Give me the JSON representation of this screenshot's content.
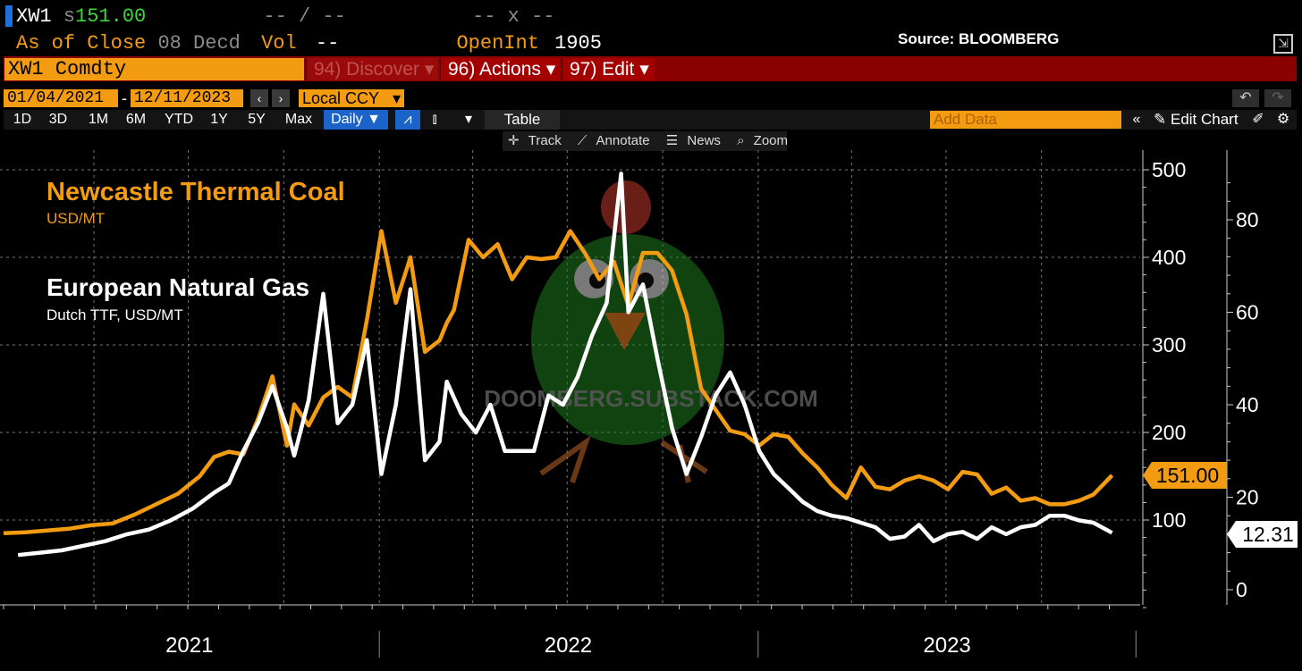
{
  "header": {
    "ticker_short": "XW1",
    "price_prefix": "s",
    "price": "151.00",
    "change_placeholder": "-- / --",
    "range_placeholder": "-- x --",
    "as_of_label": "As of Close",
    "as_of_date": "08 Decd",
    "vol_label": "Vol",
    "vol_value": "--",
    "openint_label": "OpenInt",
    "openint_value": "1905",
    "source": "Source: BLOOMBERG"
  },
  "menubar": {
    "ticker": "XW1 Comdty",
    "discover": "94) Discover ▾",
    "actions": "96) Actions ▾",
    "edit": "97) Edit ▾"
  },
  "controls": {
    "start_date": "01/04/2021",
    "end_date": "12/11/2023",
    "currency": "Local CCY",
    "ranges": [
      "1D",
      "3D",
      "1M",
      "6M",
      "YTD",
      "1Y",
      "5Y",
      "Max"
    ],
    "frequency": "Daily ▼",
    "table_label": "Table",
    "add_data_placeholder": "Add Data",
    "edit_chart": "Edit Chart",
    "tools": [
      "Track",
      "Annotate",
      "News",
      "Zoom"
    ]
  },
  "watermark": "DOOMBERG.SUBSTACK.COM",
  "colors": {
    "coal": "#f39c12",
    "gas": "#ffffff",
    "menu_bar": "#8b0000",
    "daily_button": "#1b63c8"
  },
  "chart_data": {
    "type": "line",
    "x_ticks": [
      "2021",
      "2022",
      "2023"
    ],
    "grid": true,
    "legend": "top-left",
    "series": [
      {
        "name": "Newcastle Thermal Coal",
        "unit": "USD/MT",
        "axis": "left",
        "last_value": "151.00",
        "color": "#f39c12",
        "x": [
          "2021-01-04",
          "2021-01-25",
          "2021-02-15",
          "2021-03-08",
          "2021-03-29",
          "2021-04-19",
          "2021-05-10",
          "2021-05-31",
          "2021-06-21",
          "2021-07-12",
          "2021-07-26",
          "2021-08-09",
          "2021-08-23",
          "2021-09-06",
          "2021-09-20",
          "2021-09-27",
          "2021-10-04",
          "2021-10-11",
          "2021-10-18",
          "2021-10-25",
          "2021-11-08",
          "2021-11-22",
          "2021-12-06",
          "2021-12-20",
          "2022-01-03",
          "2022-01-17",
          "2022-01-31",
          "2022-02-14",
          "2022-02-28",
          "2022-03-07",
          "2022-03-14",
          "2022-03-28",
          "2022-04-11",
          "2022-04-25",
          "2022-05-09",
          "2022-05-23",
          "2022-06-06",
          "2022-06-20",
          "2022-07-04",
          "2022-07-18",
          "2022-08-01",
          "2022-08-15",
          "2022-08-29",
          "2022-09-12",
          "2022-09-26",
          "2022-10-10",
          "2022-10-24",
          "2022-11-07",
          "2022-11-21",
          "2022-12-05",
          "2022-12-19",
          "2023-01-02",
          "2023-01-16",
          "2023-01-30",
          "2023-02-13",
          "2023-02-27",
          "2023-03-13",
          "2023-03-27",
          "2023-04-10",
          "2023-04-24",
          "2023-05-08",
          "2023-05-22",
          "2023-06-05",
          "2023-06-19",
          "2023-07-03",
          "2023-07-17",
          "2023-07-31",
          "2023-08-14",
          "2023-08-28",
          "2023-09-11",
          "2023-09-25",
          "2023-10-09",
          "2023-10-23",
          "2023-11-06",
          "2023-11-20",
          "2023-12-08"
        ],
        "values": [
          85,
          86,
          88,
          90,
          94,
          96,
          106,
          118,
          130,
          150,
          172,
          178,
          175,
          215,
          264,
          225,
          185,
          232,
          220,
          208,
          240,
          252,
          240,
          328,
          430,
          348,
          400,
          292,
          305,
          325,
          340,
          420,
          400,
          415,
          375,
          400,
          398,
          400,
          430,
          405,
          375,
          395,
          345,
          405,
          405,
          385,
          335,
          250,
          226,
          202,
          198,
          185,
          198,
          195,
          176,
          160,
          140,
          125,
          160,
          138,
          135,
          145,
          150,
          145,
          135,
          155,
          152,
          130,
          137,
          122,
          125,
          118,
          118,
          122,
          129,
          151
        ],
        "ylim": [
          0,
          500
        ],
        "y_ticks": [
          100,
          200,
          300,
          400,
          500
        ]
      },
      {
        "name": "European Natural Gas",
        "unit": "Dutch TTF, USD/MT",
        "axis": "right",
        "last_value": "12.31",
        "color": "#ffffff",
        "x": [
          "2021-01-18",
          "2021-02-08",
          "2021-03-01",
          "2021-03-22",
          "2021-04-12",
          "2021-05-03",
          "2021-05-24",
          "2021-06-14",
          "2021-07-05",
          "2021-07-26",
          "2021-08-09",
          "2021-08-23",
          "2021-09-06",
          "2021-09-20",
          "2021-10-04",
          "2021-10-11",
          "2021-10-25",
          "2021-11-08",
          "2021-11-22",
          "2021-12-06",
          "2021-12-20",
          "2022-01-03",
          "2022-01-17",
          "2022-01-31",
          "2022-02-14",
          "2022-02-28",
          "2022-03-07",
          "2022-03-21",
          "2022-04-04",
          "2022-04-18",
          "2022-05-02",
          "2022-05-16",
          "2022-05-30",
          "2022-06-13",
          "2022-06-27",
          "2022-07-11",
          "2022-07-25",
          "2022-08-08",
          "2022-08-22",
          "2022-08-29",
          "2022-09-12",
          "2022-09-26",
          "2022-10-10",
          "2022-10-24",
          "2022-11-07",
          "2022-11-21",
          "2022-12-05",
          "2022-12-19",
          "2023-01-02",
          "2023-01-16",
          "2023-01-30",
          "2023-02-13",
          "2023-02-27",
          "2023-03-13",
          "2023-03-27",
          "2023-04-10",
          "2023-04-24",
          "2023-05-08",
          "2023-05-22",
          "2023-06-05",
          "2023-06-19",
          "2023-07-03",
          "2023-07-17",
          "2023-07-31",
          "2023-08-14",
          "2023-08-28",
          "2023-09-11",
          "2023-09-25",
          "2023-10-09",
          "2023-10-23",
          "2023-11-06",
          "2023-11-20",
          "2023-12-08"
        ],
        "values": [
          7.5,
          8,
          8.5,
          9.5,
          10.5,
          12,
          13,
          15,
          17.5,
          21,
          23,
          30,
          36,
          44,
          35,
          29,
          41,
          64,
          36,
          40,
          54,
          25,
          40,
          65,
          28,
          32,
          45,
          38,
          34,
          40,
          30,
          30,
          30,
          42,
          40,
          46,
          55,
          62,
          90,
          60,
          66,
          50,
          35,
          25,
          33,
          42,
          47,
          40,
          30,
          25,
          22,
          19,
          17,
          16,
          15.5,
          14.5,
          13.5,
          11,
          11.5,
          14,
          10.5,
          12,
          12.5,
          11,
          13.5,
          12,
          13.5,
          14,
          16,
          16,
          15,
          14.5,
          12.31
        ],
        "ylim": [
          0,
          90
        ],
        "y_ticks": [
          0,
          20,
          40,
          60,
          80
        ]
      }
    ]
  }
}
